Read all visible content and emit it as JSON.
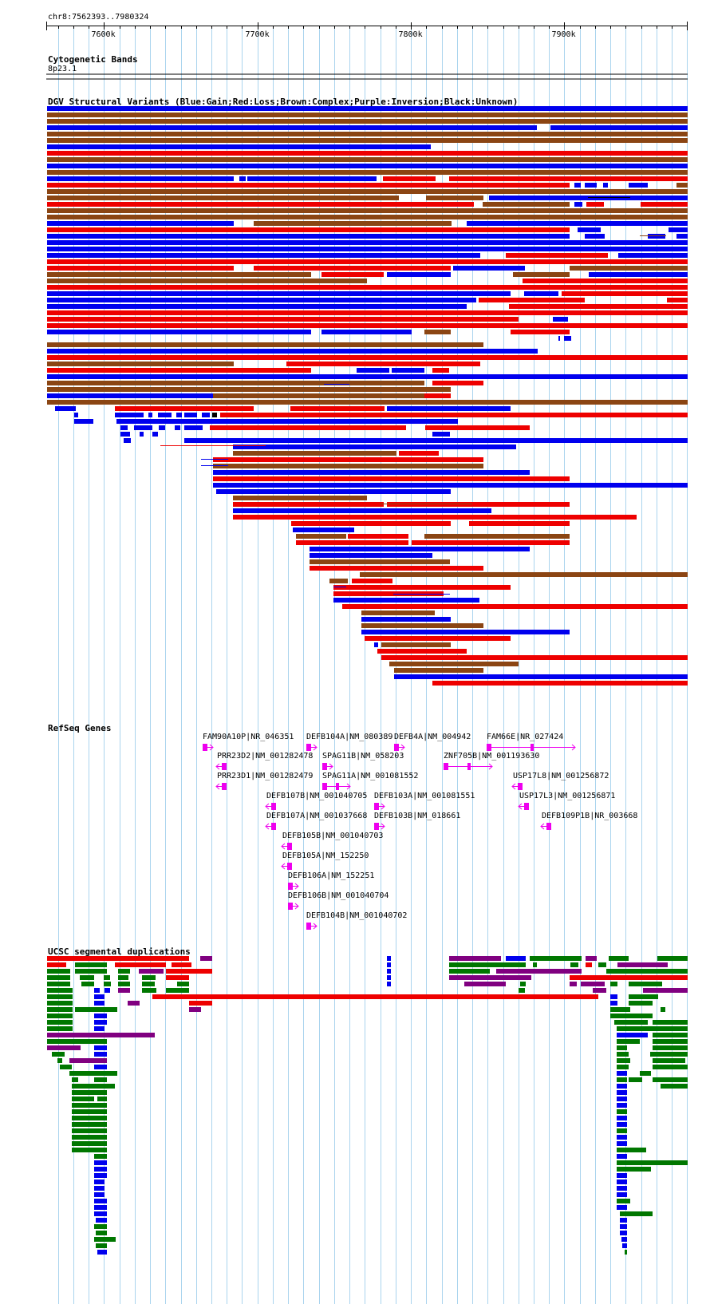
{
  "region": "chr8:7562393..7980324",
  "ruler": {
    "start": 7562393,
    "end": 7980324,
    "ticks": [
      {
        "pos": 7600000,
        "label": "7600k"
      },
      {
        "pos": 7700000,
        "label": "7700k"
      },
      {
        "pos": 7800000,
        "label": "7800k"
      },
      {
        "pos": 7900000,
        "label": "7900k"
      }
    ]
  },
  "tracks": {
    "cytoband": {
      "title": "Cytogenetic Bands",
      "band": "8p23.1"
    },
    "dgv": {
      "title": "DGV Structural Variants (Blue:Gain;Red:Loss;Brown:Complex;Purple:Inversion;Black:Unknown)"
    },
    "refseq": {
      "title": "RefSeq Genes"
    },
    "segdup": {
      "title": "UCSC segmental duplications"
    }
  },
  "colors": {
    "gain": "#0000ee",
    "loss": "#ee0000",
    "complex": "#8b4513",
    "inversion": "#800080",
    "unknown": "#000000",
    "gene": "#ee00ee",
    "segdup_red": "#ee0000",
    "segdup_green": "#007700",
    "segdup_blue": "#0000ee",
    "segdup_purple": "#800080",
    "grid": "#aad4ee"
  },
  "genes": [
    {
      "label": "FAM90A10P|NR_046351",
      "strand": "+"
    },
    {
      "label": "PRR23D2|NM_001282478",
      "strand": "-"
    },
    {
      "label": "PRR23D1|NM_001282479",
      "strand": "-"
    },
    {
      "label": "DEFB104A|NM_080389",
      "strand": "+"
    },
    {
      "label": "SPAG11B|NM_058203",
      "strand": "+"
    },
    {
      "label": "SPAG11A|NM_001081552",
      "strand": "+"
    },
    {
      "label": "DEFB107B|NM_001040705",
      "strand": "-"
    },
    {
      "label": "DEFB107A|NM_001037668",
      "strand": "-"
    },
    {
      "label": "DEFB105B|NM_001040703",
      "strand": "-"
    },
    {
      "label": "DEFB105A|NM_152250",
      "strand": "-"
    },
    {
      "label": "DEFB106A|NM_152251",
      "strand": "+"
    },
    {
      "label": "DEFB106B|NM_001040704",
      "strand": "+"
    },
    {
      "label": "DEFB104B|NM_001040702",
      "strand": "+"
    },
    {
      "label": "DEFB4A|NM_004942",
      "strand": "+"
    },
    {
      "label": "DEFB103A|NM_001081551",
      "strand": "+"
    },
    {
      "label": "DEFB103B|NM_018661",
      "strand": "+"
    },
    {
      "label": "ZNF705B|NM_001193630",
      "strand": "+"
    },
    {
      "label": "FAM66E|NR_027424",
      "strand": "+"
    },
    {
      "label": "USP17L8|NM_001256872",
      "strand": "-"
    },
    {
      "label": "USP17L3|NM_001256871",
      "strand": "-"
    },
    {
      "label": "DEFB109P1B|NR_003668",
      "strand": "-"
    }
  ]
}
